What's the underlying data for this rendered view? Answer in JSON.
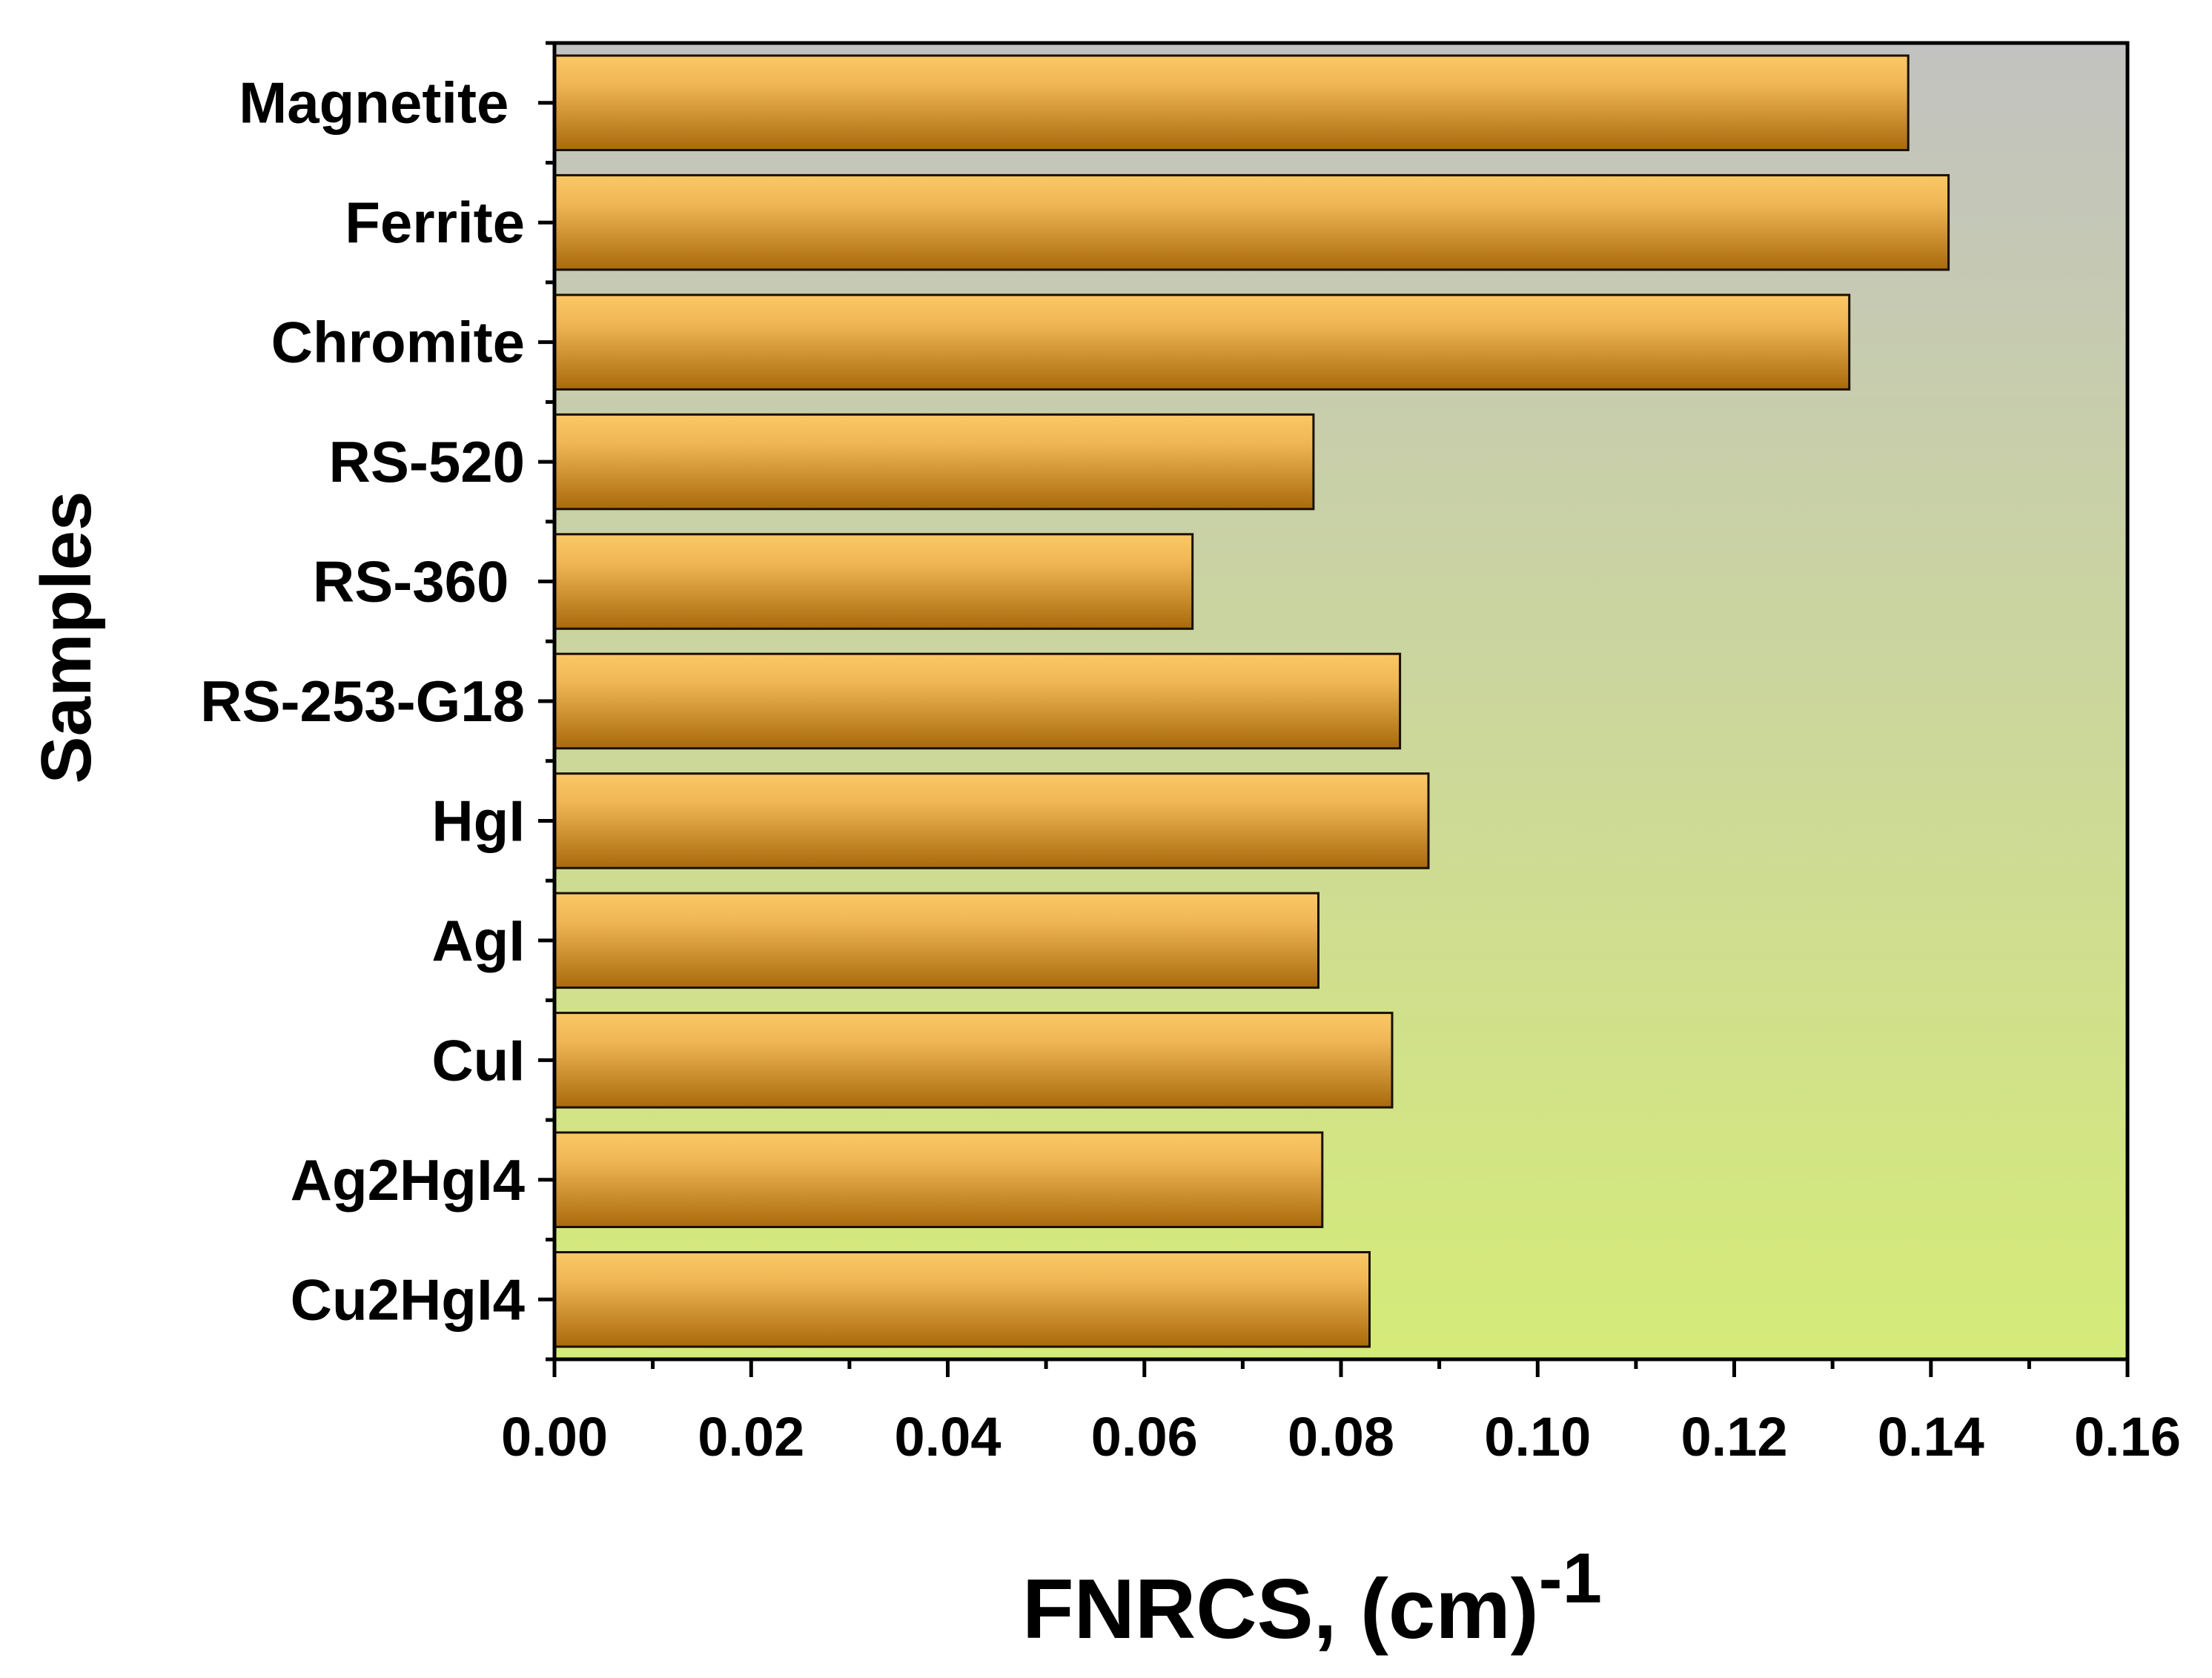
{
  "chart_data": {
    "type": "bar",
    "orientation": "horizontal",
    "categories": [
      "Magnetite ",
      "Ferrite",
      "Chromite",
      "RS-520",
      "RS-360 ",
      "RS-253-G18",
      "HgI",
      "AgI",
      "CuI",
      "Ag2HgI4",
      "Cu2HgI4"
    ],
    "values": [
      0.1377,
      0.1418,
      0.1317,
      0.0772,
      0.0649,
      0.086,
      0.0889,
      0.0777,
      0.0852,
      0.0781,
      0.0829
    ],
    "xlabel": "FNRCS, (cm)",
    "xlabel_superscript": "-1",
    "ylabel": "Samples",
    "xlim": [
      0,
      0.16
    ],
    "xticks": [
      "0.00",
      "0.02",
      "0.04",
      "0.06",
      "0.08",
      "0.10",
      "0.12",
      "0.14",
      "0.16"
    ],
    "grid": false,
    "legend": "none",
    "colors": {
      "bar_light": "#fbc865",
      "bar_dark": "#a86a0c",
      "bar_edge": "#1a1000",
      "background_top": "#c2c2c0",
      "background_bottom": "#d5eb78"
    }
  }
}
